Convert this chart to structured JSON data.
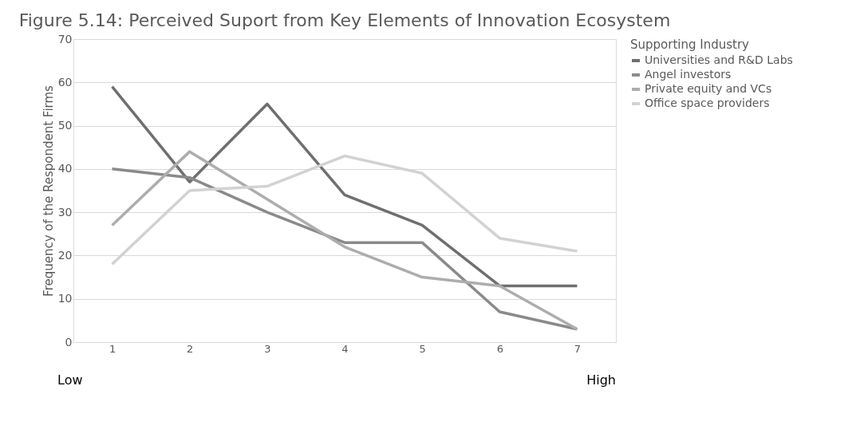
{
  "chart_data": {
    "type": "line",
    "title": "Figure 5.14:  Perceived Suport from Key Elements of Innovation Ecosystem",
    "ylabel": "Frequency of the Respondent Firms",
    "legend_title": "Supporting Industry",
    "categories": [
      "1",
      "2",
      "3",
      "4",
      "5",
      "6",
      "7"
    ],
    "series": [
      {
        "name": "Universities and R&D Labs",
        "color": "#6f6f6f",
        "values": [
          59,
          37,
          55,
          34,
          27,
          13,
          13
        ]
      },
      {
        "name": "Angel investors",
        "color": "#8a8a8a",
        "values": [
          40,
          38,
          30,
          23,
          23,
          7,
          3
        ]
      },
      {
        "name": "Private equity and VCs",
        "color": "#adadad",
        "values": [
          27,
          44,
          33,
          22,
          15,
          13,
          3
        ]
      },
      {
        "name": "Office space providers",
        "color": "#d2d2d2",
        "values": [
          18,
          35,
          36,
          43,
          39,
          24,
          21
        ]
      }
    ],
    "ylim": [
      0,
      70
    ],
    "yticks": [
      0,
      10,
      20,
      30,
      40,
      50,
      60,
      70
    ],
    "grid": "y",
    "legend": "right",
    "marker": "none",
    "line_style": "solid",
    "annotations": [
      "Low",
      "High"
    ]
  }
}
